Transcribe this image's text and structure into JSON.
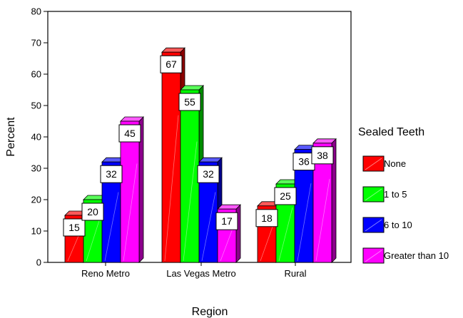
{
  "chart_data": {
    "type": "bar",
    "title": "",
    "xlabel": "Region",
    "ylabel": "Percent",
    "ylim": [
      0,
      80
    ],
    "yticks": [
      0,
      10,
      20,
      30,
      40,
      50,
      60,
      70,
      80
    ],
    "grid": false,
    "legend_title": "Sealed Teeth",
    "legend_position": "right",
    "categories": [
      "Reno Metro",
      "Las Vegas Metro",
      "Rural"
    ],
    "series": [
      {
        "name": "None",
        "color": "#ff0000",
        "values": [
          15,
          67,
          18
        ]
      },
      {
        "name": "1 to 5",
        "color": "#00ff00",
        "values": [
          20,
          55,
          25
        ]
      },
      {
        "name": "6 to 10",
        "color": "#0000ff",
        "values": [
          32,
          32,
          36
        ]
      },
      {
        "name": "Greater than 10",
        "color": "#ff00ff",
        "values": [
          45,
          17,
          38
        ]
      }
    ]
  }
}
